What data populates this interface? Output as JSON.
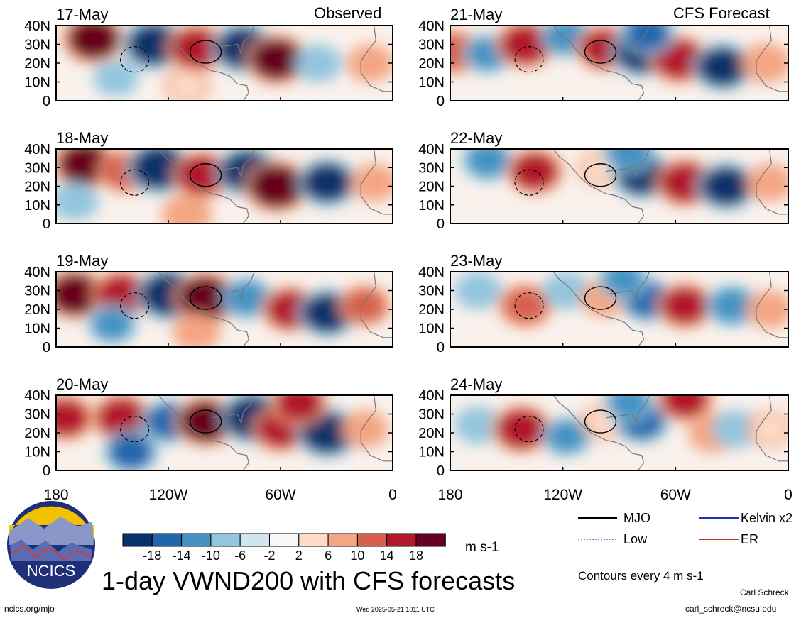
{
  "header": {
    "observed_label": "Observed",
    "forecast_label": "CFS Forecast"
  },
  "chart_data": {
    "type": "heatmap",
    "title": "1-day VWND200 with CFS forecasts",
    "variable": "VWND200",
    "units": "m s-1",
    "xlim": [
      180,
      0
    ],
    "x_ticks": [
      "180",
      "120W",
      "60W",
      "0"
    ],
    "ylim": [
      0,
      40
    ],
    "y_ticks": [
      "40N",
      "30N",
      "20N",
      "10N",
      "0"
    ],
    "color_scale": {
      "levels": [
        "-18",
        "-14",
        "-10",
        "-6",
        "-2",
        "2",
        "6",
        "10",
        "14",
        "18"
      ],
      "colors": [
        "#08306b",
        "#2166ac",
        "#4393c3",
        "#92c5de",
        "#d1e5f0",
        "#f7f7f7",
        "#fddbc7",
        "#f4a582",
        "#d6604d",
        "#b2182b",
        "#67001f"
      ]
    },
    "panels": [
      {
        "date": "17-May",
        "source": "Observed",
        "blobs": [
          {
            "lon": 160,
            "lat": 33,
            "v": 20
          },
          {
            "lon": 128,
            "lat": 30,
            "v": -20
          },
          {
            "lon": 105,
            "lat": 28,
            "v": 18
          },
          {
            "lon": 80,
            "lat": 28,
            "v": -20
          },
          {
            "lon": 62,
            "lat": 22,
            "v": 20
          },
          {
            "lon": 40,
            "lat": 20,
            "v": -8
          },
          {
            "lon": 148,
            "lat": 12,
            "v": -6
          },
          {
            "lon": 110,
            "lat": 8,
            "v": 6
          },
          {
            "lon": 12,
            "lat": 20,
            "v": 8
          }
        ]
      },
      {
        "date": "18-May",
        "source": "Observed",
        "blobs": [
          {
            "lon": 165,
            "lat": 32,
            "v": 20
          },
          {
            "lon": 143,
            "lat": 28,
            "v": 14
          },
          {
            "lon": 125,
            "lat": 30,
            "v": -22
          },
          {
            "lon": 102,
            "lat": 26,
            "v": 18
          },
          {
            "lon": 78,
            "lat": 28,
            "v": -20
          },
          {
            "lon": 62,
            "lat": 20,
            "v": 22
          },
          {
            "lon": 35,
            "lat": 22,
            "v": -18
          },
          {
            "lon": 170,
            "lat": 12,
            "v": -8
          },
          {
            "lon": 110,
            "lat": 5,
            "v": 10
          },
          {
            "lon": 10,
            "lat": 22,
            "v": 8
          }
        ]
      },
      {
        "date": "19-May",
        "source": "Observed",
        "blobs": [
          {
            "lon": 170,
            "lat": 28,
            "v": 20
          },
          {
            "lon": 145,
            "lat": 28,
            "v": 18
          },
          {
            "lon": 120,
            "lat": 28,
            "v": -22
          },
          {
            "lon": 100,
            "lat": 26,
            "v": 22
          },
          {
            "lon": 78,
            "lat": 26,
            "v": -12
          },
          {
            "lon": 55,
            "lat": 20,
            "v": 16
          },
          {
            "lon": 35,
            "lat": 18,
            "v": -18
          },
          {
            "lon": 150,
            "lat": 12,
            "v": -10
          },
          {
            "lon": 105,
            "lat": 8,
            "v": 8
          },
          {
            "lon": 15,
            "lat": 22,
            "v": 12
          }
        ]
      },
      {
        "date": "20-May",
        "source": "Observed",
        "blobs": [
          {
            "lon": 175,
            "lat": 28,
            "v": 16
          },
          {
            "lon": 145,
            "lat": 28,
            "v": 18
          },
          {
            "lon": 120,
            "lat": 26,
            "v": -14
          },
          {
            "lon": 100,
            "lat": 26,
            "v": 20
          },
          {
            "lon": 75,
            "lat": 28,
            "v": -22
          },
          {
            "lon": 60,
            "lat": 22,
            "v": 16
          },
          {
            "lon": 35,
            "lat": 20,
            "v": -20
          },
          {
            "lon": 140,
            "lat": 10,
            "v": -14
          },
          {
            "lon": 50,
            "lat": 36,
            "v": 16
          },
          {
            "lon": 15,
            "lat": 22,
            "v": 8
          }
        ]
      },
      {
        "date": "21-May",
        "source": "CFS Forecast",
        "blobs": [
          {
            "lon": 178,
            "lat": 26,
            "v": 14
          },
          {
            "lon": 160,
            "lat": 25,
            "v": -10
          },
          {
            "lon": 140,
            "lat": 30,
            "v": 18
          },
          {
            "lon": 118,
            "lat": 34,
            "v": -12
          },
          {
            "lon": 98,
            "lat": 28,
            "v": 16
          },
          {
            "lon": 78,
            "lat": 26,
            "v": -20
          },
          {
            "lon": 58,
            "lat": 22,
            "v": 18
          },
          {
            "lon": 35,
            "lat": 18,
            "v": -18
          },
          {
            "lon": 75,
            "lat": 36,
            "v": -14
          },
          {
            "lon": 12,
            "lat": 20,
            "v": 10
          }
        ]
      },
      {
        "date": "22-May",
        "source": "CFS Forecast",
        "blobs": [
          {
            "lon": 160,
            "lat": 34,
            "v": -12
          },
          {
            "lon": 135,
            "lat": 28,
            "v": 16
          },
          {
            "lon": 100,
            "lat": 30,
            "v": 6
          },
          {
            "lon": 78,
            "lat": 26,
            "v": -18
          },
          {
            "lon": 55,
            "lat": 22,
            "v": 18
          },
          {
            "lon": 33,
            "lat": 20,
            "v": -18
          },
          {
            "lon": 85,
            "lat": 38,
            "v": -12
          },
          {
            "lon": 10,
            "lat": 22,
            "v": 8
          }
        ]
      },
      {
        "date": "23-May",
        "source": "CFS Forecast",
        "blobs": [
          {
            "lon": 165,
            "lat": 30,
            "v": -8
          },
          {
            "lon": 140,
            "lat": 22,
            "v": 14
          },
          {
            "lon": 118,
            "lat": 30,
            "v": -8
          },
          {
            "lon": 98,
            "lat": 26,
            "v": 8
          },
          {
            "lon": 75,
            "lat": 25,
            "v": -14
          },
          {
            "lon": 55,
            "lat": 22,
            "v": 16
          },
          {
            "lon": 30,
            "lat": 22,
            "v": -12
          },
          {
            "lon": 88,
            "lat": 36,
            "v": -10
          },
          {
            "lon": 10,
            "lat": 20,
            "v": 8
          }
        ]
      },
      {
        "date": "24-May",
        "source": "CFS Forecast",
        "blobs": [
          {
            "lon": 165,
            "lat": 24,
            "v": -8
          },
          {
            "lon": 142,
            "lat": 22,
            "v": 18
          },
          {
            "lon": 118,
            "lat": 18,
            "v": -10
          },
          {
            "lon": 98,
            "lat": 26,
            "v": 6
          },
          {
            "lon": 78,
            "lat": 26,
            "v": -14
          },
          {
            "lon": 55,
            "lat": 38,
            "v": 16
          },
          {
            "lon": 40,
            "lat": 20,
            "v": 10
          },
          {
            "lon": 28,
            "lat": 22,
            "v": -8
          },
          {
            "lon": 85,
            "lat": 36,
            "v": -10
          },
          {
            "lon": 10,
            "lat": 22,
            "v": 6
          }
        ]
      }
    ]
  },
  "legend": {
    "items": [
      {
        "label": "MJO",
        "color": "#000000",
        "style": "solid"
      },
      {
        "label": "Kelvin x2",
        "color": "#1f2fbf",
        "style": "solid"
      },
      {
        "label": "Low",
        "color": "#b36ae0",
        "style": "dotted"
      },
      {
        "label": "ER",
        "color": "#d02a1f",
        "style": "solid"
      }
    ],
    "contour_note": "Contours every 4 m s-1"
  },
  "colorbar": {
    "units_label": "m s-1"
  },
  "footer": {
    "logo_text": "NCICS",
    "site": "ncics.org/mjo",
    "timestamp": "Wed 2025-05-21 1011 UTC",
    "author": "Carl Schreck",
    "email": "carl_schreck@ncsu.edu"
  }
}
